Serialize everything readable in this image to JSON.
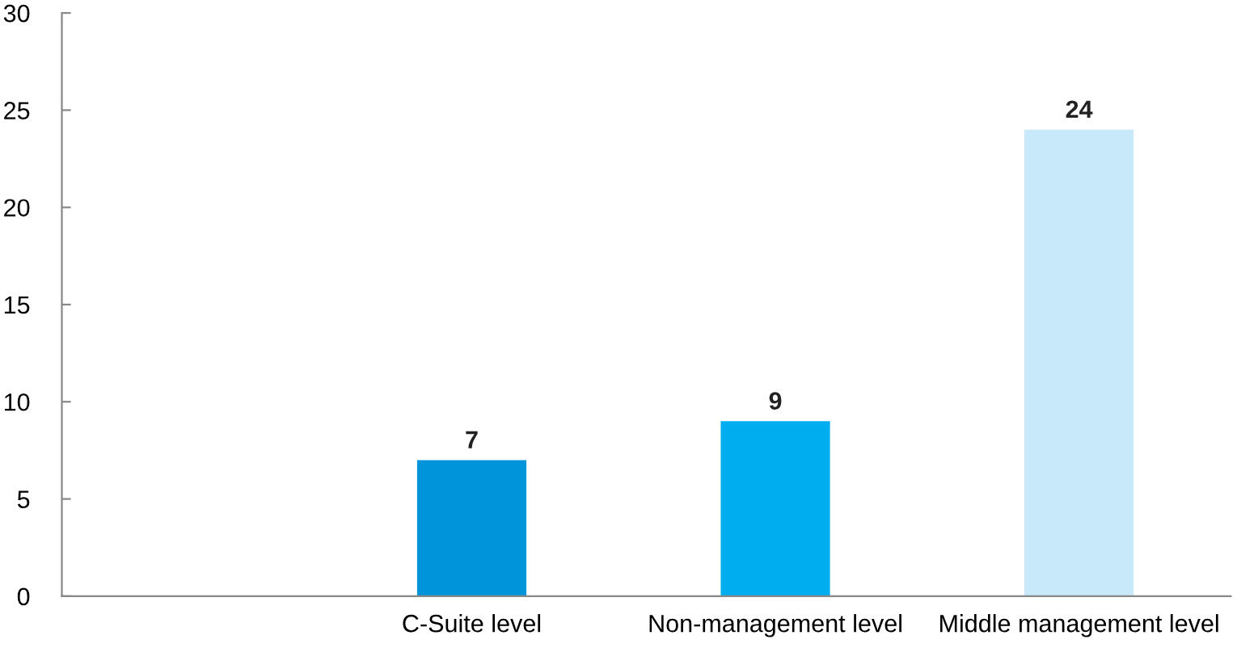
{
  "chart_data": {
    "type": "bar",
    "categories": [
      null,
      "C-Suite level",
      "Non-management level",
      "Middle management level"
    ],
    "values": [
      null,
      7,
      9,
      24
    ],
    "colors": [
      null,
      "#0095da",
      "#00aeef",
      "#c7e9f9"
    ],
    "ylim": [
      0,
      30
    ],
    "yticks": [
      0,
      5,
      10,
      15,
      20,
      25,
      30
    ],
    "grid": false,
    "data_labels": true
  }
}
